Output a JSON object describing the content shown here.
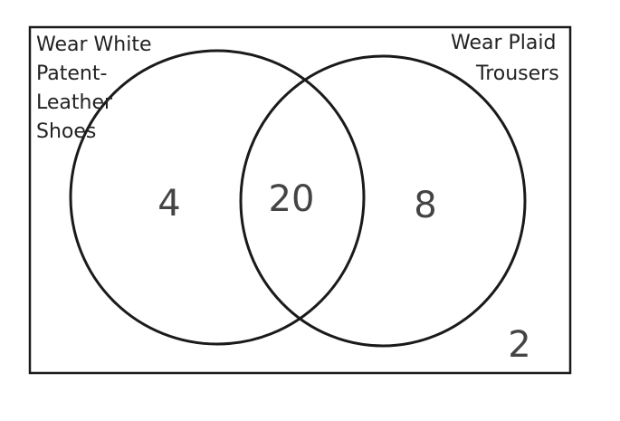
{
  "diagram": {
    "type": "venn",
    "sets": [
      {
        "label_lines": [
          "Wear White",
          "Patent-",
          "Leather",
          "Shoes"
        ]
      },
      {
        "label_lines": [
          "Wear Plaid",
          "Trousers"
        ]
      }
    ],
    "regions": {
      "left_only": "4",
      "both": "20",
      "right_only": "8",
      "neither": "2"
    }
  }
}
